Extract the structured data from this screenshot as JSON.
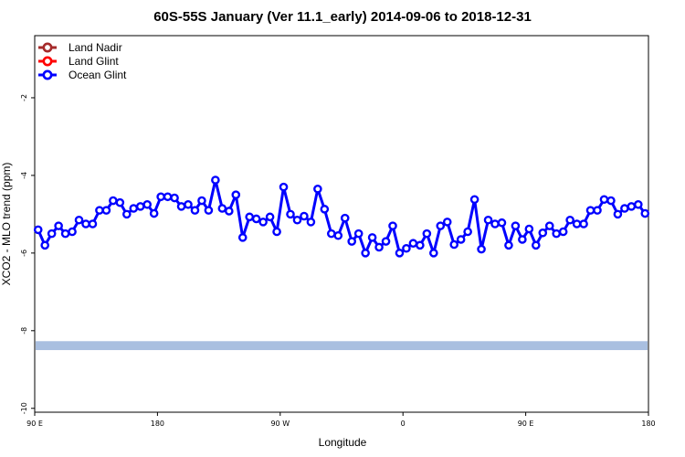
{
  "chart_data": {
    "type": "line",
    "title": "60S-55S January (Ver 11.1_early)   2014-09-06 to 2018-12-31",
    "xlabel": "Longitude",
    "ylabel": "XCO2 - MLO trend (ppm)",
    "x_ticks": [
      {
        "pos": 90,
        "label": "90 E"
      },
      {
        "pos": 180,
        "label": "180"
      },
      {
        "pos": 270,
        "label": "90 W"
      },
      {
        "pos": 360,
        "label": "0"
      },
      {
        "pos": 450,
        "label": "90 E"
      },
      {
        "pos": 540,
        "label": "180"
      }
    ],
    "y_ticks": [
      -10,
      -8,
      -6,
      -4,
      -2
    ],
    "xlim": [
      90,
      540
    ],
    "ylim": [
      -10.1,
      -0.4
    ],
    "legend_position": "top-left",
    "legend": [
      {
        "name": "Land Nadir",
        "color": "#a52a2a"
      },
      {
        "name": "Land Glint",
        "color": "#ff0000"
      },
      {
        "name": "Ocean Glint",
        "color": "#0000ff"
      }
    ],
    "band": {
      "y_low": -8.5,
      "y_high": -8.27,
      "color": "#a9bfe0"
    },
    "series": [
      {
        "name": "Ocean Glint",
        "color": "#0000ff",
        "x": [
          92.5,
          97.5,
          102.5,
          107.5,
          112.5,
          117.5,
          122.5,
          127.5,
          132.5,
          137.5,
          142.5,
          147.5,
          152.5,
          157.5,
          162.5,
          167.5,
          172.5,
          177.5,
          182.5,
          187.5,
          192.5,
          197.5,
          202.5,
          207.5,
          212.5,
          217.5,
          222.5,
          227.5,
          232.5,
          237.5,
          242.5,
          247.5,
          252.5,
          257.5,
          262.5,
          267.5,
          272.5,
          277.5,
          282.5,
          287.5,
          292.5,
          297.5,
          302.5,
          307.5,
          312.5,
          317.5,
          322.5,
          327.5,
          332.5,
          337.5,
          342.5,
          347.5,
          352.5,
          357.5,
          362.5,
          367.5,
          372.5,
          377.5,
          382.5,
          387.5,
          392.5,
          397.5,
          402.5,
          407.5,
          412.5,
          417.5,
          422.5,
          427.5,
          432.5,
          437.5,
          442.5,
          447.5,
          452.5,
          457.5,
          462.5,
          467.5,
          472.5,
          477.5,
          482.5,
          487.5,
          492.5,
          497.5,
          502.5,
          507.5,
          512.5,
          517.5,
          522.5,
          527.5,
          532.5,
          537.5
        ],
        "values": [
          -5.4,
          -5.8,
          -5.5,
          -5.3,
          -5.5,
          -5.45,
          -5.15,
          -5.25,
          -5.25,
          -4.9,
          -4.9,
          -4.65,
          -4.7,
          -5.0,
          -4.85,
          -4.8,
          -4.75,
          -4.98,
          -4.55,
          -4.55,
          -4.58,
          -4.8,
          -4.75,
          -4.9,
          -4.65,
          -4.9,
          -4.12,
          -4.85,
          -4.92,
          -4.5,
          -5.6,
          -5.07,
          -5.12,
          -5.2,
          -5.07,
          -5.45,
          -4.3,
          -5.0,
          -5.15,
          -5.05,
          -5.2,
          -4.35,
          -4.87,
          -5.5,
          -5.55,
          -5.1,
          -5.7,
          -5.5,
          -6.0,
          -5.6,
          -5.85,
          -5.7,
          -5.3,
          -6.0,
          -5.88,
          -5.75,
          -5.8,
          -5.5,
          -6.0,
          -5.3,
          -5.2,
          -5.78,
          -5.65,
          -5.45,
          -4.62,
          -5.9,
          -5.15,
          -5.25,
          -5.22,
          -5.8,
          -5.3,
          -5.65,
          -5.38,
          -5.8,
          -5.48,
          -5.3,
          -5.5,
          -5.45,
          -5.15,
          -5.25,
          -5.25,
          -4.9,
          -4.9,
          -4.62,
          -4.65,
          -5.0,
          -4.85,
          -4.8,
          -4.75,
          -4.98
        ]
      }
    ]
  }
}
